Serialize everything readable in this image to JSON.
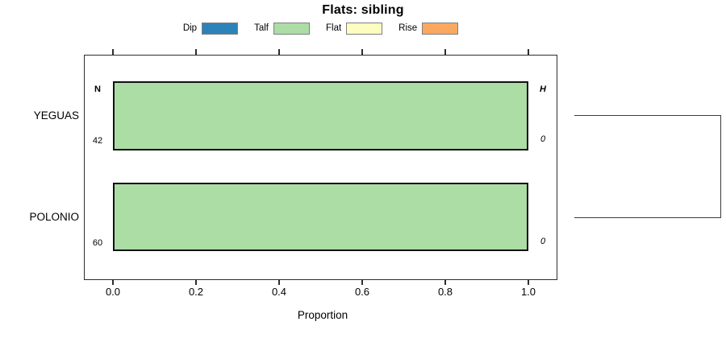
{
  "title": "Flats: sibling",
  "legend": {
    "items": [
      {
        "label": "Dip",
        "color": "#2b83ba"
      },
      {
        "label": "Talf",
        "color": "#abdda4"
      },
      {
        "label": "Flat",
        "color": "#fdfdc0"
      },
      {
        "label": "Rise",
        "color": "#fba860"
      }
    ]
  },
  "columns": {
    "n_header": "N",
    "h_header": "H"
  },
  "rows": [
    {
      "label": "YEGUAS",
      "n": "42",
      "h": "0"
    },
    {
      "label": "POLONIO",
      "n": "60",
      "h": "0"
    }
  ],
  "axis": {
    "label": "Proportion",
    "ticks": [
      "0.0",
      "0.2",
      "0.4",
      "0.6",
      "0.8",
      "1.0"
    ]
  },
  "chart_data": {
    "type": "bar",
    "orientation": "horizontal",
    "stacked": true,
    "title": "Flats: sibling",
    "categories": [
      "YEGUAS",
      "POLONIO"
    ],
    "series": [
      {
        "name": "Dip",
        "color": "#2b83ba",
        "values": [
          0,
          0
        ]
      },
      {
        "name": "Talf",
        "color": "#abdda4",
        "values": [
          1.0,
          1.0
        ]
      },
      {
        "name": "Flat",
        "color": "#fdfdc0",
        "values": [
          0,
          0
        ]
      },
      {
        "name": "Rise",
        "color": "#fba860",
        "values": [
          0,
          0
        ]
      }
    ],
    "annotations": {
      "N": [
        42,
        60
      ],
      "H": [
        0,
        0
      ]
    },
    "xlabel": "Proportion",
    "xlim": [
      0,
      1
    ],
    "x_ticks": [
      0.0,
      0.2,
      0.4,
      0.6,
      0.8,
      1.0
    ],
    "grid": false,
    "legend_position": "top",
    "right_dendrogram": {
      "leaves": [
        "YEGUAS",
        "POLONIO"
      ],
      "merges": 1
    }
  }
}
